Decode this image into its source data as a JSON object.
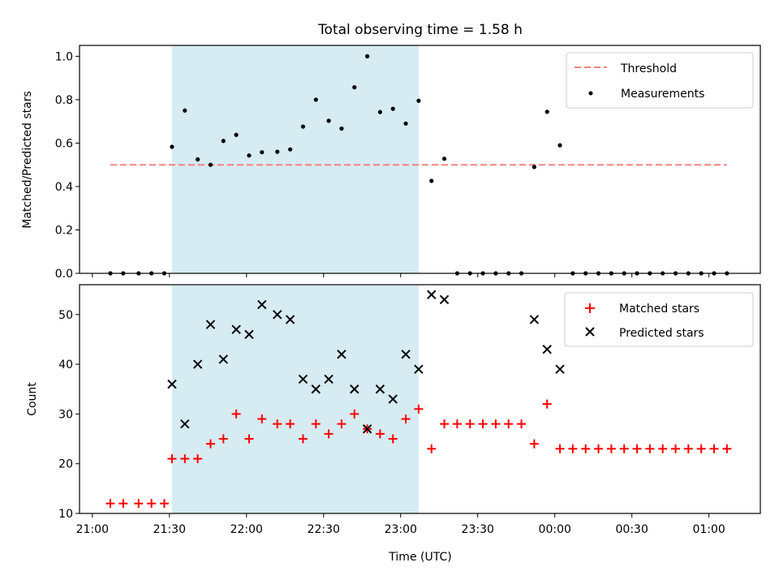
{
  "figure": {
    "title": "Total observing time = 1.58 h"
  },
  "chart_data": [
    {
      "type": "scatter",
      "title": "Total observing time = 1.58 h",
      "xlabel": "",
      "ylabel": "Matched/Predicted stars",
      "xlim": [
        "20:55",
        "01:20"
      ],
      "ylim": [
        0,
        1.05
      ],
      "yticks": [
        0.0,
        0.2,
        0.4,
        0.6,
        0.8,
        1.0
      ],
      "ytick_labels": [
        "0.0",
        "0.2",
        "0.4",
        "0.6",
        "0.8",
        "1.0"
      ],
      "shaded_span": {
        "start": "21:31",
        "end": "23:07",
        "color": "#add8e6"
      },
      "legend_position": "upper right",
      "series": [
        {
          "name": "Threshold",
          "style": "dashed-line",
          "color": "#ff8080",
          "x": [
            "21:07",
            "01:07"
          ],
          "y": [
            0.5,
            0.5
          ]
        },
        {
          "name": "Measurements",
          "style": "dot",
          "color": "#000000",
          "x": [
            "21:07",
            "21:12",
            "21:18",
            "21:23",
            "21:28",
            "21:31",
            "21:36",
            "21:41",
            "21:46",
            "21:51",
            "21:56",
            "22:01",
            "22:06",
            "22:12",
            "22:17",
            "22:22",
            "22:27",
            "22:32",
            "22:37",
            "22:42",
            "22:47",
            "22:52",
            "22:57",
            "23:02",
            "23:07",
            "23:12",
            "23:17",
            "23:22",
            "23:27",
            "23:32",
            "23:37",
            "23:42",
            "23:47",
            "23:52",
            "23:57",
            "00:02",
            "00:07",
            "00:12",
            "00:17",
            "00:22",
            "00:27",
            "00:32",
            "00:37",
            "00:42",
            "00:47",
            "00:52",
            "00:57",
            "01:02",
            "01:07"
          ],
          "y": [
            0,
            0,
            0,
            0,
            0,
            0.583,
            0.75,
            0.525,
            0.5,
            0.61,
            0.638,
            0.543,
            0.558,
            0.56,
            0.571,
            0.676,
            0.8,
            0.703,
            0.667,
            0.857,
            1.0,
            0.743,
            0.758,
            0.69,
            0.795,
            0.426,
            0.528,
            0,
            0,
            0,
            0,
            0,
            0,
            0.49,
            0.744,
            0.59,
            0,
            0,
            0,
            0,
            0,
            0,
            0,
            0,
            0,
            0,
            0,
            0,
            0
          ]
        }
      ]
    },
    {
      "type": "scatter",
      "title": "",
      "xlabel": "Time (UTC)",
      "ylabel": "Count",
      "xlim": [
        "20:55",
        "01:20"
      ],
      "ylim": [
        10,
        56
      ],
      "yticks": [
        10,
        20,
        30,
        40,
        50
      ],
      "ytick_labels": [
        "10",
        "20",
        "30",
        "40",
        "50"
      ],
      "xticks": [
        "21:00",
        "21:30",
        "22:00",
        "22:30",
        "23:00",
        "23:30",
        "00:00",
        "00:30",
        "01:00"
      ],
      "xtick_labels": [
        "21:00",
        "21:30",
        "22:00",
        "22:30",
        "23:00",
        "23:30",
        "00:00",
        "00:30",
        "01:00"
      ],
      "shaded_span": {
        "start": "21:31",
        "end": "23:07",
        "color": "#add8e6"
      },
      "legend_position": "upper right",
      "series": [
        {
          "name": "Matched stars",
          "marker": "plus",
          "color": "#ff0000",
          "x": [
            "21:07",
            "21:12",
            "21:18",
            "21:23",
            "21:28",
            "21:31",
            "21:36",
            "21:41",
            "21:46",
            "21:51",
            "21:56",
            "22:01",
            "22:06",
            "22:12",
            "22:17",
            "22:22",
            "22:27",
            "22:32",
            "22:37",
            "22:42",
            "22:47",
            "22:52",
            "22:57",
            "23:02",
            "23:07",
            "23:12",
            "23:17",
            "23:22",
            "23:27",
            "23:32",
            "23:37",
            "23:42",
            "23:47",
            "23:52",
            "23:57",
            "00:02",
            "00:07",
            "00:12",
            "00:17",
            "00:22",
            "00:27",
            "00:32",
            "00:37",
            "00:42",
            "00:47",
            "00:52",
            "00:57",
            "01:02",
            "01:07"
          ],
          "y": [
            12,
            12,
            12,
            12,
            12,
            21,
            21,
            21,
            24,
            25,
            30,
            25,
            29,
            28,
            28,
            25,
            28,
            26,
            28,
            30,
            27,
            26,
            25,
            29,
            31,
            23,
            28,
            28,
            28,
            28,
            28,
            28,
            28,
            24,
            32,
            23,
            23,
            23,
            23,
            23,
            23,
            23,
            23,
            23,
            23,
            23,
            23,
            23,
            23
          ]
        },
        {
          "name": "Predicted stars",
          "marker": "x",
          "color": "#000000",
          "x": [
            "21:31",
            "21:36",
            "21:41",
            "21:46",
            "21:51",
            "21:56",
            "22:01",
            "22:06",
            "22:12",
            "22:17",
            "22:22",
            "22:27",
            "22:32",
            "22:37",
            "22:42",
            "22:47",
            "22:52",
            "22:57",
            "23:02",
            "23:07",
            "23:12",
            "23:17",
            "23:52",
            "23:57",
            "00:02"
          ],
          "y": [
            36,
            28,
            40,
            48,
            41,
            47,
            46,
            52,
            50,
            49,
            37,
            35,
            37,
            42,
            35,
            27,
            35,
            33,
            42,
            39,
            54,
            53,
            49,
            43,
            39
          ]
        }
      ]
    }
  ]
}
